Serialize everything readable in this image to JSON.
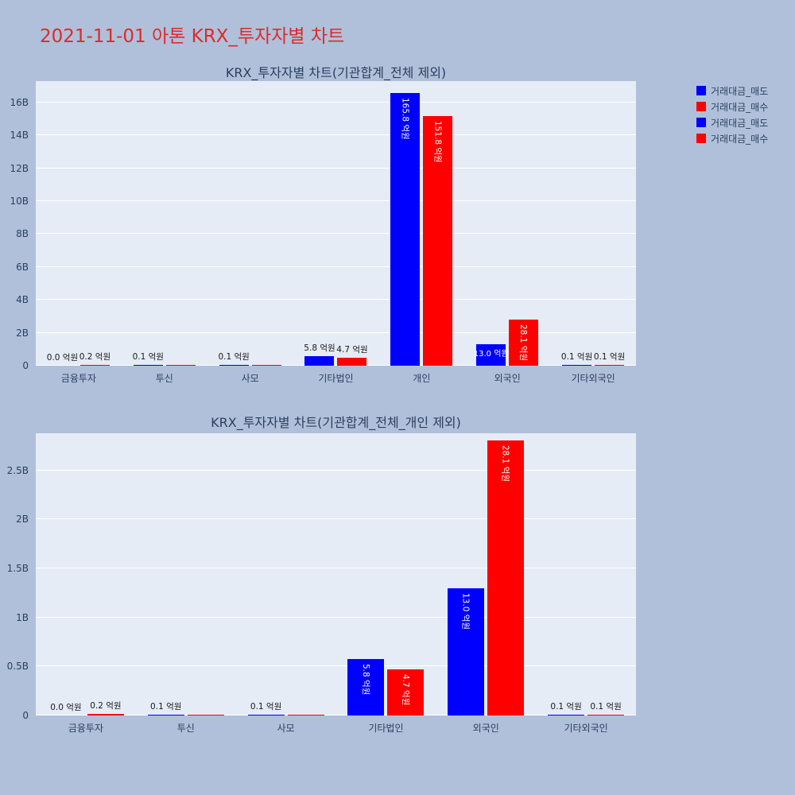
{
  "header": {
    "title": "2021-11-01 아톤 KRX_투자자별 차트"
  },
  "colors": {
    "page-bg": "#b0c0da",
    "plot-bg": "#e5ecf6",
    "grid": "#ffffff",
    "axis-text": "#2a3f5f",
    "title-red": "#dd2a2a",
    "label-out": "#1a1a1a",
    "label-in": "#ffffff",
    "sell": "#0000ff",
    "buy": "#ff0000"
  },
  "legend": {
    "items": [
      {
        "label": "거래대금_매도",
        "color": "#0000ff"
      },
      {
        "label": "거래대금_매수",
        "color": "#ff0000"
      },
      {
        "label": "거래대금_매도",
        "color": "#0000ff"
      },
      {
        "label": "거래대금_매수",
        "color": "#ff0000"
      }
    ]
  },
  "chart_data": [
    {
      "type": "bar",
      "title": "KRX_투자자별 차트(기관합계_전체 제외)",
      "unit": "억원",
      "categories": [
        "금융투자",
        "투신",
        "사모",
        "기타법인",
        "개인",
        "외국인",
        "기타외국인"
      ],
      "series": [
        {
          "name": "거래대금_매도",
          "color": "#0000ff",
          "values_eok": [
            0.0,
            0.1,
            0.1,
            5.8,
            165.8,
            13.0,
            0.1
          ],
          "labels": [
            "0.0 억원",
            "0.1 억원",
            "0.1 억원",
            "5.8 억원",
            "165.8 억원",
            "13.0 억원",
            "0.1 억원"
          ]
        },
        {
          "name": "거래대금_매수",
          "color": "#ff0000",
          "values_eok": [
            0.2,
            0.1,
            0.1,
            4.7,
            151.8,
            28.1,
            0.1
          ],
          "labels": [
            "0.2 억원",
            "",
            "",
            "4.7 억원",
            "151.8 억원",
            "28.1 억원",
            "0.1 억원"
          ]
        }
      ],
      "yticks": [
        {
          "label": "0",
          "value_B": 0
        },
        {
          "label": "2B",
          "value_B": 2
        },
        {
          "label": "4B",
          "value_B": 4
        },
        {
          "label": "6B",
          "value_B": 6
        },
        {
          "label": "8B",
          "value_B": 8
        },
        {
          "label": "10B",
          "value_B": 10
        },
        {
          "label": "12B",
          "value_B": 12
        },
        {
          "label": "14B",
          "value_B": 14
        },
        {
          "label": "16B",
          "value_B": 16
        }
      ],
      "ylim_B": [
        0,
        17.3
      ],
      "grid": true,
      "legend_position": "top-right-outside"
    },
    {
      "type": "bar",
      "title": "KRX_투자자별 차트(기관합계_전체_개인 제외)",
      "unit": "억원",
      "categories": [
        "금융투자",
        "투신",
        "사모",
        "기타법인",
        "외국인",
        "기타외국인"
      ],
      "series": [
        {
          "name": "거래대금_매도",
          "color": "#0000ff",
          "values_eok": [
            0.0,
            0.1,
            0.1,
            5.8,
            13.0,
            0.1
          ],
          "labels": [
            "0.0 억원",
            "0.1 억원",
            "0.1 억원",
            "5.8 억원",
            "13.0 억원",
            "0.1 억원"
          ]
        },
        {
          "name": "거래대금_매수",
          "color": "#ff0000",
          "values_eok": [
            0.2,
            0.1,
            0.1,
            4.7,
            28.1,
            0.1
          ],
          "labels": [
            "0.2 억원",
            "",
            "",
            "4.7 억원",
            "28.1 억원",
            "0.1 억원"
          ]
        }
      ],
      "yticks": [
        {
          "label": "0",
          "value_B": 0
        },
        {
          "label": "0.5B",
          "value_B": 0.5
        },
        {
          "label": "1B",
          "value_B": 1
        },
        {
          "label": "1.5B",
          "value_B": 1.5
        },
        {
          "label": "2B",
          "value_B": 2
        },
        {
          "label": "2.5B",
          "value_B": 2.5
        }
      ],
      "ylim_B": [
        0,
        2.88
      ],
      "grid": true,
      "legend_position": "shared"
    }
  ]
}
